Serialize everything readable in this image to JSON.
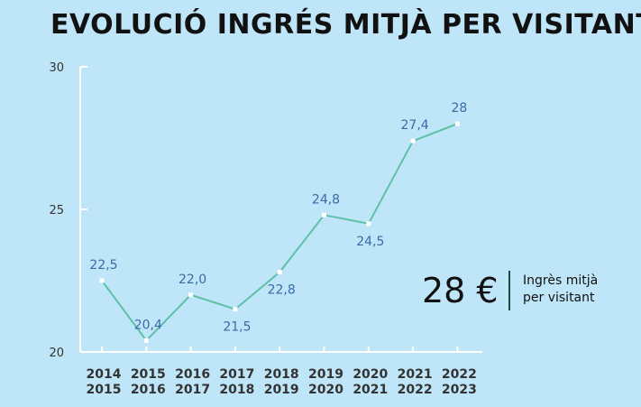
{
  "chart_data": {
    "type": "line",
    "title": "EVOLUCIÓ INGRÉS MITJÀ PER VISITANT",
    "categories": [
      [
        "2014",
        "2015"
      ],
      [
        "2015",
        "2016"
      ],
      [
        "2016",
        "2017"
      ],
      [
        "2017",
        "2018"
      ],
      [
        "2018",
        "2019"
      ],
      [
        "2019",
        "2020"
      ],
      [
        "2020",
        "2021"
      ],
      [
        "2021",
        "2022"
      ],
      [
        "2022",
        "2023"
      ]
    ],
    "values": [
      22.5,
      20.4,
      22.0,
      21.5,
      22.8,
      24.8,
      24.5,
      27.4,
      28
    ],
    "data_labels": [
      "22,5",
      "20,4",
      "22,0",
      "21,5",
      "22,8",
      "24,8",
      "24,5",
      "27,4",
      "28"
    ],
    "ylim": [
      20,
      30
    ],
    "yticks": [
      20,
      25,
      30
    ],
    "grid": false,
    "colors": {
      "line": "#5fc0a8",
      "marker": "#ffffff",
      "data_label": "#3a6aa6",
      "axis": "#ffffff",
      "tick_label": "#333333",
      "background": "#bfe6f8"
    }
  },
  "callout": {
    "value": "28 €",
    "label_line1": "Ingrès mitjà",
    "label_line2": "per visitant"
  }
}
